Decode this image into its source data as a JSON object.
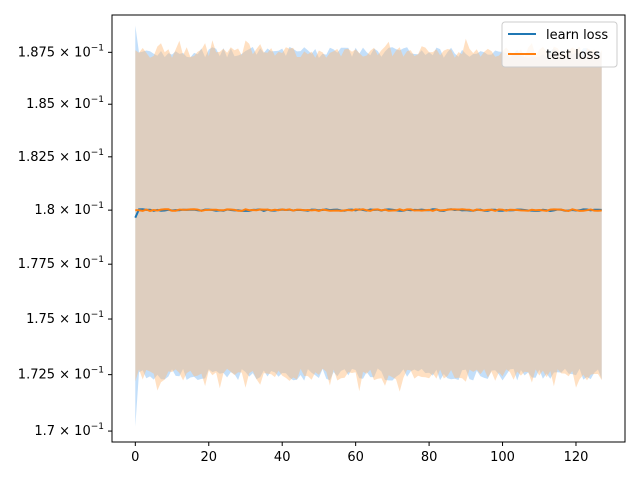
{
  "chart_data": {
    "type": "line",
    "title": "",
    "xlabel": "",
    "ylabel": "",
    "yscale": "log",
    "xlim": [
      -6.35,
      133.35
    ],
    "ylim": [
      0.16952,
      0.18932
    ],
    "x_ticks": [
      0,
      20,
      40,
      60,
      80,
      100,
      120
    ],
    "y_ticks": [
      {
        "value": 0.17,
        "mantissa": "1.7"
      },
      {
        "value": 0.1725,
        "mantissa": "1.725"
      },
      {
        "value": 0.175,
        "mantissa": "1.75"
      },
      {
        "value": 0.1775,
        "mantissa": "1.775"
      },
      {
        "value": 0.18,
        "mantissa": "1.8"
      },
      {
        "value": 0.1825,
        "mantissa": "1.825"
      },
      {
        "value": 0.185,
        "mantissa": "1.85"
      },
      {
        "value": 0.1875,
        "mantissa": "1.875"
      }
    ],
    "y_tick_base": "10",
    "y_tick_exponent": "−1",
    "grid": false,
    "legend_position": "top-right",
    "series": [
      {
        "name": "learn loss",
        "color": "#1f77b4",
        "band_color": "#87c0f5",
        "x_start": 0,
        "x_end": 127,
        "mean_value": 0.18,
        "mean_start_value": 0.17965,
        "band_upper": 0.1875,
        "band_lower": 0.1725,
        "band_upper_first": 0.1888,
        "band_lower_first": 0.1702
      },
      {
        "name": "test loss",
        "color": "#ff7f0e",
        "band_color": "#ffbb78",
        "x_start": 0,
        "x_end": 127,
        "mean_value": 0.18,
        "mean_start_value": 0.18,
        "band_upper": 0.1875,
        "band_lower": 0.1725,
        "band_upper_first": 0.1876,
        "band_lower_first": 0.1722
      }
    ]
  }
}
